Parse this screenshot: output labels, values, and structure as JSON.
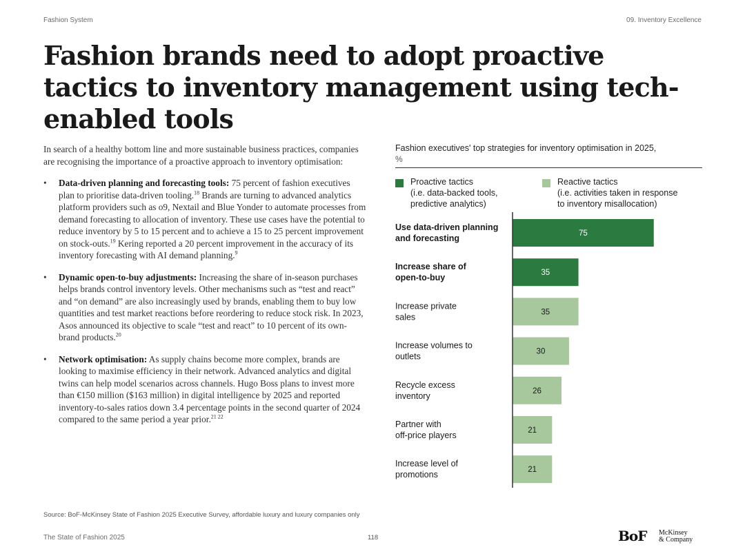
{
  "header": {
    "left": "Fashion System",
    "right": "09. Inventory Excellence"
  },
  "title": "Fashion brands need to adopt proactive tactics to inventory management using tech-enabled tools",
  "intro": "In search of a healthy bottom line and more sustainable business practices, companies are recognising the importance of a proactive approach to inventory optimisation:",
  "bullets": [
    {
      "heading": "Data-driven planning and forecasting tools:",
      "text_a": " 75 percent of fashion executives plan to prioritise data-driven tooling.",
      "sup_a": "18",
      "text_b": " Brands are turning to advanced analytics platform providers such as o9, Nextail and Blue Yonder to automate processes from demand forecasting to allocation of inventory. These use cases have the potential to reduce inventory by 5 to 15 percent and to achieve a 15 to 25 percent improvement on stock-outs.",
      "sup_b": "19",
      "text_c": " Kering reported a 20 percent improvement in the accuracy of its inventory forecasting with AI demand planning.",
      "sup_c": "9"
    },
    {
      "heading": "Dynamic open-to-buy adjustments:",
      "text_a": " Increasing the share of in-season purchases helps brands control inventory levels. Other mechanisms such as “test and react” and “on demand” are also increasingly used by brands, enabling them to buy low quantities and test market reactions before reordering to reduce stock risk. In 2023, Asos announced its objective to scale “test and react” to 10 percent of its own-brand products.",
      "sup_a": "20",
      "text_b": "",
      "sup_b": "",
      "text_c": "",
      "sup_c": ""
    },
    {
      "heading": "Network optimisation:",
      "text_a": " As supply chains become more complex, brands are looking to maximise efficiency in their network. Advanced analytics and digital twins can help model scenarios across channels. Hugo Boss plans to invest more than €150 million ($163 million) in digital intelligence by 2025 and reported inventory-to-sales ratios down 3.4 percentage points in the second quarter of 2024 compared to the same period a year prior.",
      "sup_a": "21 22",
      "text_b": "",
      "sup_b": "",
      "text_c": "",
      "sup_c": ""
    }
  ],
  "bullet_symbol": "•",
  "legend": {
    "proactive": "Proactive tactics\n(i.e. data-backed tools,\npredictive analytics)",
    "reactive": "Reactive tactics\n(i.e. activities taken in response\nto inventory misallocation)"
  },
  "colors": {
    "proactive": "#2b7a3f",
    "reactive": "#a7c79d",
    "axis": "#333333",
    "text": "#1a1a1a"
  },
  "chart_data": {
    "type": "bar",
    "orientation": "horizontal",
    "title": "Fashion executives' top strategies for inventory optimisation in 2025,",
    "unit": "%",
    "xlim": [
      0,
      100
    ],
    "grid": false,
    "legend_position": "top",
    "categories": [
      "Use data-driven planning\nand forecasting",
      "Increase share of\nopen-to-buy",
      "Increase private\nsales",
      "Increase volumes to\noutlets",
      "Recycle excess\ninventory",
      "Partner with\noff-price players",
      "Increase level of\npromotions"
    ],
    "values": [
      75,
      35,
      35,
      30,
      26,
      21,
      21
    ],
    "groups": [
      "proactive",
      "proactive",
      "reactive",
      "reactive",
      "reactive",
      "reactive",
      "reactive"
    ],
    "series": [
      {
        "name": "Proactive tactics",
        "group": "proactive"
      },
      {
        "name": "Reactive tactics",
        "group": "reactive"
      }
    ]
  },
  "footer": {
    "source": "Source: BoF-McKinsey State of Fashion 2025 Executive Survey, affordable luxury and luxury companies only",
    "left": "The State of Fashion 2025",
    "page": "118",
    "logo_bof": "BoF",
    "logo_mck": "McKinsey\n& Company"
  }
}
